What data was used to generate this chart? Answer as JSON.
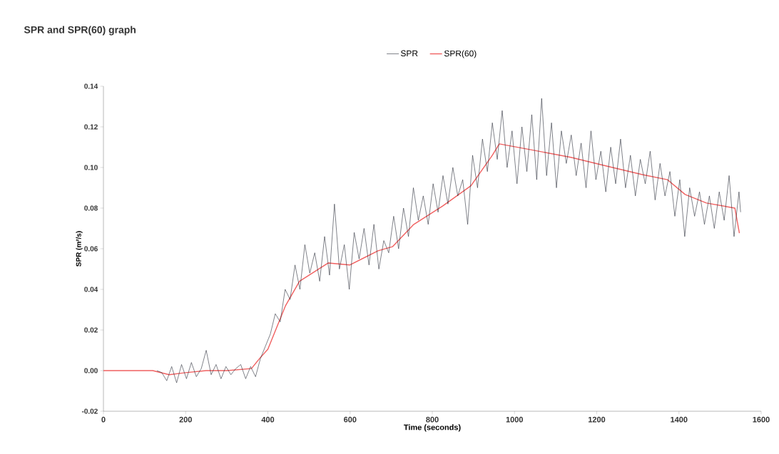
{
  "chart_data": {
    "type": "line",
    "title": "SPR and SPR(60) graph",
    "xlabel": "Time (seconds)",
    "ylabel": "SPR (m²/s)",
    "xlim": [
      0,
      1600
    ],
    "xticks": [
      0,
      200,
      400,
      600,
      800,
      1000,
      1200,
      1400,
      1600
    ],
    "ylim": [
      -0.02,
      0.14
    ],
    "yticks": [
      {
        "value": -0.02,
        "label": "-0.02"
      },
      {
        "value": 0,
        "label": "0.00"
      },
      {
        "value": 0.02,
        "label": "0.02"
      },
      {
        "value": 0.04,
        "label": "0.04"
      },
      {
        "value": 0.06,
        "label": "0.06"
      },
      {
        "value": 0.08,
        "label": "0.08"
      },
      {
        "value": 0.1,
        "label": "0.10"
      },
      {
        "value": 0.12,
        "label": "0.12"
      },
      {
        "value": 0.14,
        "label": "0.14"
      }
    ],
    "grid": false,
    "legend": "top",
    "marker": "none",
    "line_style": "solid",
    "series": [
      {
        "name": "SPR",
        "color": "#2b2f3a",
        "x": [
          130,
          142,
          154,
          166,
          178,
          190,
          202,
          214,
          226,
          238,
          250,
          262,
          274,
          286,
          298,
          310,
          322,
          334,
          346,
          358,
          370,
          382,
          394,
          406,
          418,
          430,
          442,
          454,
          466,
          478,
          490,
          502,
          514,
          526,
          538,
          550,
          562,
          574,
          586,
          598,
          610,
          622,
          634,
          646,
          658,
          670,
          682,
          694,
          706,
          718,
          730,
          742,
          754,
          766,
          778,
          790,
          802,
          814,
          826,
          838,
          850,
          862,
          874,
          886,
          898,
          910,
          922,
          934,
          946,
          958,
          970,
          982,
          994,
          1006,
          1018,
          1030,
          1042,
          1054,
          1066,
          1078,
          1090,
          1102,
          1114,
          1126,
          1138,
          1150,
          1162,
          1174,
          1186,
          1198,
          1210,
          1222,
          1234,
          1246,
          1258,
          1270,
          1282,
          1294,
          1306,
          1318,
          1330,
          1342,
          1354,
          1366,
          1378,
          1390,
          1402,
          1414,
          1426,
          1438,
          1450,
          1462,
          1474,
          1486,
          1498,
          1510,
          1522,
          1534,
          1546,
          1550
        ],
        "values": [
          0.0,
          -0.001,
          -0.005,
          0.002,
          -0.006,
          0.003,
          -0.004,
          0.004,
          -0.003,
          0.001,
          0.01,
          -0.002,
          0.003,
          -0.004,
          0.002,
          -0.002,
          0.001,
          0.003,
          -0.004,
          0.002,
          -0.003,
          0.006,
          0.012,
          0.018,
          0.028,
          0.024,
          0.04,
          0.035,
          0.052,
          0.04,
          0.062,
          0.048,
          0.058,
          0.044,
          0.066,
          0.047,
          0.082,
          0.05,
          0.062,
          0.04,
          0.068,
          0.055,
          0.07,
          0.052,
          0.072,
          0.05,
          0.064,
          0.058,
          0.076,
          0.06,
          0.08,
          0.066,
          0.09,
          0.074,
          0.086,
          0.072,
          0.092,
          0.078,
          0.096,
          0.082,
          0.1,
          0.086,
          0.094,
          0.072,
          0.106,
          0.09,
          0.114,
          0.098,
          0.122,
          0.104,
          0.128,
          0.1,
          0.118,
          0.092,
          0.12,
          0.098,
          0.126,
          0.094,
          0.134,
          0.096,
          0.122,
          0.09,
          0.118,
          0.102,
          0.116,
          0.096,
          0.112,
          0.09,
          0.118,
          0.094,
          0.108,
          0.088,
          0.11,
          0.092,
          0.114,
          0.09,
          0.106,
          0.086,
          0.104,
          0.092,
          0.108,
          0.084,
          0.102,
          0.086,
          0.098,
          0.076,
          0.094,
          0.066,
          0.09,
          0.076,
          0.088,
          0.072,
          0.086,
          0.07,
          0.088,
          0.074,
          0.096,
          0.066,
          0.088,
          0.078
        ]
      },
      {
        "name": "SPR(60)",
        "color": "#f06060",
        "x": [
          0,
          120,
          160,
          200,
          250,
          300,
          360,
          380,
          400,
          443,
          477,
          547,
          599,
          668,
          703,
          755,
          825,
          894,
          946,
          963,
          1033,
          1137,
          1224,
          1311,
          1372,
          1415,
          1467,
          1536,
          1547
        ],
        "values": [
          0,
          0,
          -0.002,
          -0.001,
          0,
          0,
          0.001,
          0.006,
          0.0105,
          0.032,
          0.044,
          0.053,
          0.052,
          0.059,
          0.061,
          0.072,
          0.081,
          0.091,
          0.106,
          0.1116,
          0.109,
          0.105,
          0.1007,
          0.0965,
          0.094,
          0.0867,
          0.0825,
          0.08,
          0.0677
        ]
      }
    ]
  }
}
